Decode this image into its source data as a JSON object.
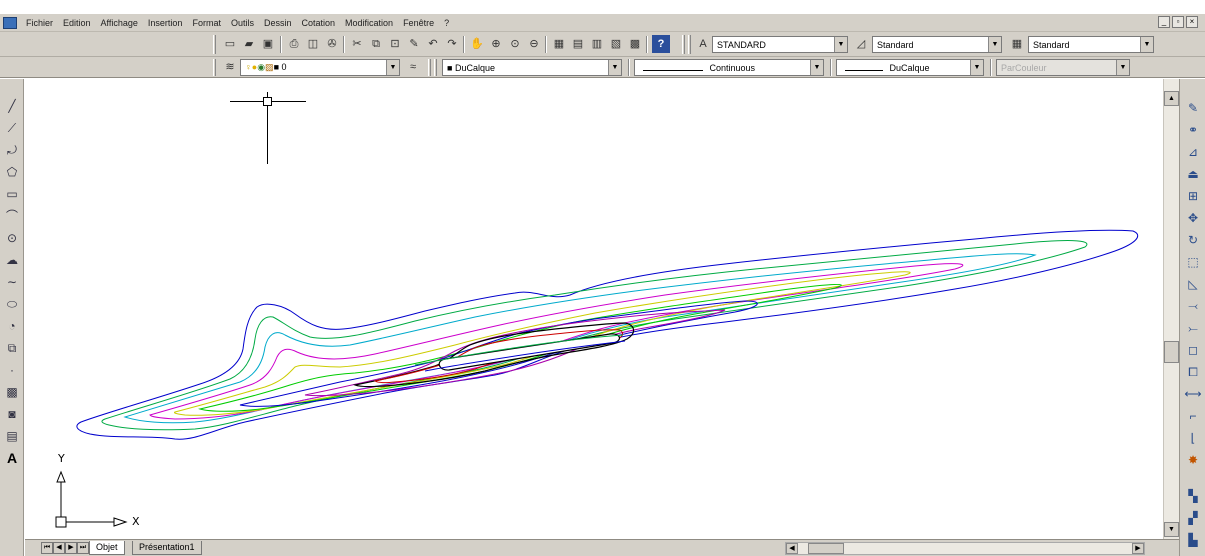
{
  "menu": {
    "items": [
      "Fichier",
      "Edition",
      "Affichage",
      "Insertion",
      "Format",
      "Outils",
      "Dessin",
      "Cotation",
      "Modification",
      "Fenêtre",
      "?"
    ],
    "window_controls": [
      "_",
      "▫",
      "×"
    ]
  },
  "toolbar": {
    "text_style": "STANDARD",
    "dim_style": "Standard",
    "table_style": "Standard"
  },
  "layers": {
    "current_layer": "0",
    "color": "DuCalque",
    "linetype": "Continuous",
    "lineweight": "DuCalque",
    "plot_style": "ParCouleur"
  },
  "tabs": [
    "Objet",
    "Présentation1"
  ],
  "ucs": {
    "x_label": "X",
    "y_label": "Y"
  },
  "colors": {
    "ui_gray": "#d4d0c8",
    "contour_blue": "#0000cc"
  }
}
